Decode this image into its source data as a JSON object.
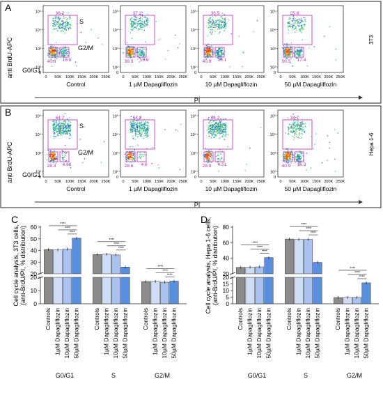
{
  "panels": {
    "A": {
      "letter": "A",
      "cell_line": "3T3",
      "x_axis": "PI",
      "y_axis": "anti BrdU-APC",
      "gate_labels": {
        "s": "S",
        "g2m": "G2/M",
        "g0g1": "G0/G1"
      },
      "x_ticks": [
        "0",
        "50K",
        "100K",
        "150K",
        "200K",
        "250K"
      ],
      "y_ticks": [
        "10⁵",
        "10⁴",
        "10³",
        "10²"
      ],
      "plots": [
        {
          "condition": "Control",
          "s_pct": "36.2",
          "g0g1_pct": "40.8",
          "g2m_pct": "16.8"
        },
        {
          "condition": "1 µM Dapagliflozin",
          "s_pct": "37.2",
          "g0g1_pct": "39.3",
          "g2m_pct": "16.9"
        },
        {
          "condition": "10 µM Dapagliflozin",
          "s_pct": "36.5",
          "g0g1_pct": "40.9",
          "g2m_pct": "16.1"
        },
        {
          "condition": "50 µM Dapagliflozin",
          "s_pct": "25.8",
          "g0g1_pct": "50.5",
          "g2m_pct": "17.4"
        }
      ]
    },
    "B": {
      "letter": "B",
      "cell_line": "Hepa 1-6",
      "x_axis": "PI",
      "y_axis": "anti BrdU-APC",
      "gate_labels": {
        "s": "S",
        "g2m": "G2/M",
        "g0g1": "G0/G1"
      },
      "x_ticks": [
        "0",
        "50K",
        "100K",
        "150K",
        "200K",
        "250K"
      ],
      "y_ticks": [
        "10⁵",
        "10⁴",
        "10³",
        "10²"
      ],
      "plots": [
        {
          "condition": "Control",
          "s_pct": "64.7",
          "g0g1_pct": "28.3",
          "g2m_pct": "4.68"
        },
        {
          "condition": "1 µM Dapagliflozin",
          "s_pct": "64.2",
          "g0g1_pct": "28.6",
          "g2m_pct": "4.8"
        },
        {
          "condition": "10 µM Dapagliflozin",
          "s_pct": "64.2",
          "g0g1_pct": "28.9",
          "g2m_pct": "4.51"
        },
        {
          "condition": "50 µM Dapagliflozin",
          "s_pct": "34.7",
          "g0g1_pct": "40.9",
          "g2m_pct": "16.3"
        }
      ]
    }
  },
  "colors": {
    "gate": "#c040c0",
    "pct_text": "#b030b0",
    "bar_controls": "#8c8c8c",
    "bar_1um": "#cfdcf5",
    "bar_10um": "#a9c3ee",
    "bar_50um": "#5a8fe0"
  },
  "chart_data": [
    {
      "type": "bar",
      "panel": "C",
      "ylabel": "Cell cycle analysis, 3T3 cells (anti-BrdU/PI, % distribution)",
      "groups": [
        "G0/G1",
        "S",
        "G2/M"
      ],
      "categories": [
        "Controls",
        "1µM Dapagliflozin",
        "10µM Dapagliflozin",
        "50µM Dapagliflozin"
      ],
      "values": [
        [
          40.8,
          40.5,
          41.2,
          50.5
        ],
        [
          36.5,
          36.8,
          36.2,
          25.8
        ],
        [
          16.8,
          16.9,
          16.3,
          17.1
        ]
      ],
      "y_upper_ticks": [
        20,
        30,
        40,
        50,
        60
      ],
      "y_lower_ticks": [
        0,
        10,
        20
      ],
      "significance": "****"
    },
    {
      "type": "bar",
      "panel": "D",
      "ylabel": "Cell cycle analysis, Hepa 1-6 cells (anti-BrdU/PI, % distribution)",
      "groups": [
        "G0/G1",
        "S",
        "G2/M"
      ],
      "categories": [
        "Controls",
        "1µM Dapagliflozin",
        "10µM Dapagliflozin",
        "50µM Dapagliflozin"
      ],
      "values": [
        [
          28.3,
          28.6,
          28.9,
          40.9
        ],
        [
          64.7,
          64.2,
          64.2,
          34.7
        ],
        [
          4.7,
          4.8,
          4.8,
          15.8
        ]
      ],
      "y_upper_ticks": [
        20,
        40,
        60,
        80
      ],
      "y_lower_ticks": [
        0,
        5,
        10,
        15,
        20
      ],
      "significance": "****"
    }
  ]
}
